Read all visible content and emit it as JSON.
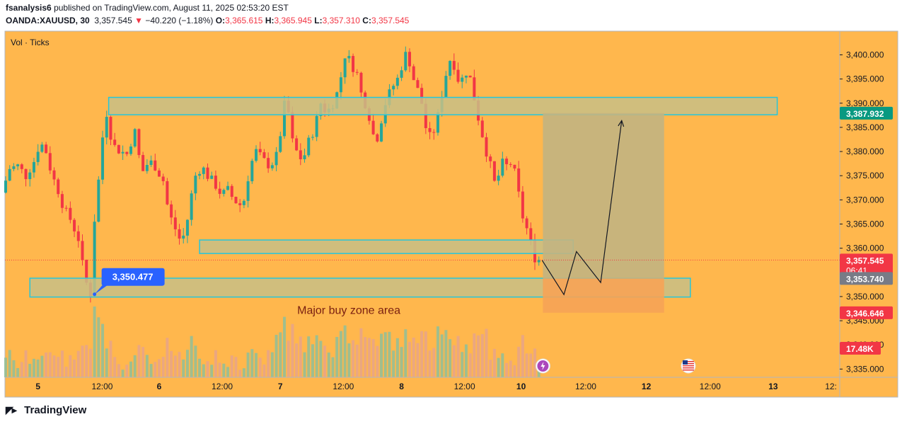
{
  "header": {
    "author": "fsanalysis6",
    "published_text": "published on TradingView.com, August 11, 2025 02:53:20 EST",
    "symbol": "OANDA:XAUUSD, 30",
    "price": "3,357.545",
    "change_arrow": "▼",
    "change": "−40.220 (−1.18%)",
    "o_label": "O:",
    "o_value": "3,365.615",
    "h_label": "H:",
    "h_value": "3,365.945",
    "l_label": "L:",
    "l_value": "3,357.310",
    "c_label": "C:",
    "c_value": "3,357.545"
  },
  "footer": {
    "brand": "TradingView",
    "logo_icon": "tradingview-logo-icon"
  },
  "colors": {
    "background": "#ffb74d",
    "up": "#26a69a",
    "down": "#f23645",
    "zone_fill": "#c8bf86",
    "zone_border": "#26c6da",
    "target_fill": "#c2b482",
    "stop_fill": "#f6a357",
    "callout": "#2962ff"
  },
  "chart_data": {
    "type": "candlestick",
    "volume_label": "Vol · Ticks",
    "x_ticks": [
      "5",
      "12:00",
      "6",
      "12:00",
      "7",
      "12:00",
      "8",
      "12:00",
      "10",
      "12:00",
      "12",
      "12:00",
      "13",
      "12:"
    ],
    "y_ticks": [
      "3,400.000",
      "3,395.000",
      "3,390.000",
      "3,385.000",
      "3,380.000",
      "3,375.000",
      "3,370.000",
      "3,365.000",
      "3,360.000",
      "3,355.000",
      "3,350.000",
      "3,345.000",
      "3,340.000",
      "3,335.000"
    ],
    "y_range": [
      3333.3,
      3404.9
    ],
    "price_path": [
      [
        0,
        3371.5
      ],
      [
        2,
        3376.5
      ],
      [
        4,
        3377
      ],
      [
        6,
        3375
      ],
      [
        8,
        3378
      ],
      [
        9.5,
        3382
      ],
      [
        11,
        3380
      ],
      [
        12.5,
        3375
      ],
      [
        14,
        3372
      ],
      [
        15.5,
        3368
      ],
      [
        17,
        3366
      ],
      [
        19,
        3362
      ],
      [
        20.5,
        3354
      ],
      [
        21.5,
        3351.5
      ],
      [
        22,
        3350.5
      ],
      [
        22.5,
        3356
      ],
      [
        23,
        3366
      ],
      [
        24,
        3374
      ],
      [
        25,
        3383
      ],
      [
        26,
        3388
      ],
      [
        26.8,
        3384
      ],
      [
        28,
        3381
      ],
      [
        29.5,
        3380
      ],
      [
        31,
        3379.5
      ],
      [
        32,
        3382
      ],
      [
        33,
        3384
      ],
      [
        34,
        3379
      ],
      [
        35,
        3376
      ],
      [
        36.5,
        3378
      ],
      [
        38,
        3377
      ],
      [
        40,
        3374
      ],
      [
        41,
        3369
      ],
      [
        42,
        3366
      ],
      [
        43,
        3364
      ],
      [
        44,
        3362
      ],
      [
        45,
        3362.5
      ],
      [
        46,
        3366
      ],
      [
        47,
        3371
      ],
      [
        48,
        3375
      ],
      [
        49.5,
        3377
      ],
      [
        51,
        3375
      ],
      [
        53,
        3373
      ],
      [
        54.5,
        3371
      ],
      [
        56,
        3372
      ],
      [
        57.5,
        3370
      ],
      [
        59,
        3369
      ],
      [
        60,
        3370
      ],
      [
        61.5,
        3377
      ],
      [
        63,
        3380
      ],
      [
        65,
        3378
      ],
      [
        66.5,
        3377
      ],
      [
        68,
        3379
      ],
      [
        69.5,
        3386
      ],
      [
        70.5,
        3393
      ],
      [
        71.5,
        3383
      ],
      [
        73,
        3380
      ],
      [
        74.5,
        3378
      ],
      [
        76,
        3382
      ],
      [
        77.5,
        3385
      ],
      [
        79,
        3390
      ],
      [
        80.5,
        3388
      ],
      [
        82,
        3390
      ],
      [
        83.5,
        3393
      ],
      [
        84.5,
        3398
      ],
      [
        85.5,
        3402
      ],
      [
        86.5,
        3396
      ],
      [
        87.5,
        3399
      ],
      [
        88.5,
        3393
      ],
      [
        90,
        3390
      ],
      [
        91.5,
        3386
      ],
      [
        92.5,
        3381
      ],
      [
        93.5,
        3385
      ],
      [
        95,
        3390
      ],
      [
        96.5,
        3393
      ],
      [
        98,
        3395
      ],
      [
        99.5,
        3399
      ],
      [
        100.5,
        3401
      ],
      [
        101.5,
        3396
      ],
      [
        102.5,
        3394
      ],
      [
        104,
        3390
      ],
      [
        105,
        3385
      ],
      [
        106,
        3383
      ],
      [
        107.5,
        3385
      ],
      [
        109,
        3392
      ],
      [
        110.5,
        3398
      ],
      [
        111.5,
        3400
      ],
      [
        112.5,
        3396
      ],
      [
        113.5,
        3394
      ],
      [
        114.5,
        3396
      ],
      [
        115.5,
        3397
      ],
      [
        116.5,
        3393
      ],
      [
        117.5,
        3389
      ],
      [
        118.5,
        3385
      ],
      [
        119.5,
        3382
      ],
      [
        120.5,
        3378
      ],
      [
        121.5,
        3376
      ],
      [
        122.5,
        3371
      ],
      [
        123.5,
        3379
      ],
      [
        124.5,
        3376
      ],
      [
        125.5,
        3378
      ],
      [
        126.5,
        3377
      ],
      [
        127.5,
        3374
      ],
      [
        128.5,
        3368
      ],
      [
        129.5,
        3365
      ],
      [
        130.5,
        3363
      ],
      [
        131.5,
        3359
      ],
      [
        132.3,
        3357.545
      ]
    ],
    "x_end_index": 132.3,
    "zones": [
      {
        "from_index": 25.5,
        "to_index": 191,
        "low": 3387.6,
        "high": 3391.2
      },
      {
        "from_index": 48,
        "to_index": 140.5,
        "low": 3358.9,
        "high": 3361.7
      },
      {
        "from_index": 6,
        "to_index": 169.5,
        "low": 3349.9,
        "high": 3353.8
      }
    ],
    "position": {
      "from_index": 133,
      "to_index": 163,
      "entry": 3353.74,
      "target": 3387.932,
      "stop": 3346.646
    },
    "projection": [
      [
        132.8,
        3357.5
      ],
      [
        138.2,
        3350.4
      ],
      [
        141.3,
        3359.3
      ],
      [
        147.3,
        3352.9
      ],
      [
        152.5,
        3386.4
      ]
    ],
    "callout": {
      "index": 22,
      "price": 3350.477,
      "label": "3,350.477"
    },
    "annotation": {
      "index": 86,
      "price": 3347.3,
      "text": "Major buy zone area"
    },
    "price_labels": [
      {
        "price": 3387.932,
        "text": "3,387.932",
        "color": "#089981"
      },
      {
        "price": 3357.545,
        "text": "3,357.545",
        "sub": "06:41",
        "color": "#f23645"
      },
      {
        "price": 3353.74,
        "text": "3,353.740",
        "color": "#787b86"
      },
      {
        "price": 3346.646,
        "text": "3,346.646",
        "color": "#f23645"
      }
    ],
    "volume_badge": "17.48K",
    "last_price": 3357.545,
    "event_icons": [
      {
        "index": 133,
        "name": "lightning-event-icon"
      },
      {
        "index": 169,
        "name": "us-flag-event-icon"
      }
    ]
  }
}
